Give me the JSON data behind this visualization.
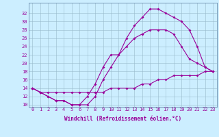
{
  "xlabel": "Windchill (Refroidissement éolien,°C)",
  "background_color": "#cceeff",
  "line_color": "#990099",
  "grid_color": "#99bbcc",
  "spine_color": "#6688aa",
  "marker": "D",
  "markersize": 2,
  "linewidth": 0.8,
  "series1": [
    [
      0,
      14
    ],
    [
      1,
      13
    ],
    [
      2,
      12
    ],
    [
      3,
      11
    ],
    [
      4,
      11
    ],
    [
      5,
      10
    ],
    [
      6,
      10
    ],
    [
      7,
      10
    ],
    [
      8,
      12
    ],
    [
      9,
      16
    ],
    [
      10,
      19
    ],
    [
      11,
      22
    ],
    [
      12,
      26
    ],
    [
      13,
      29
    ],
    [
      14,
      31
    ],
    [
      15,
      33
    ],
    [
      16,
      33
    ],
    [
      17,
      32
    ],
    [
      18,
      31
    ],
    [
      19,
      30
    ],
    [
      20,
      28
    ],
    [
      21,
      24
    ],
    [
      22,
      19
    ],
    [
      23,
      18
    ]
  ],
  "series2": [
    [
      0,
      14
    ],
    [
      1,
      13
    ],
    [
      2,
      12
    ],
    [
      3,
      11
    ],
    [
      4,
      11
    ],
    [
      5,
      10
    ],
    [
      6,
      10
    ],
    [
      7,
      12
    ],
    [
      8,
      15
    ],
    [
      9,
      19
    ],
    [
      10,
      22
    ],
    [
      11,
      22
    ],
    [
      12,
      24
    ],
    [
      13,
      26
    ],
    [
      14,
      27
    ],
    [
      15,
      28
    ],
    [
      16,
      28
    ],
    [
      17,
      28
    ],
    [
      18,
      27
    ],
    [
      19,
      24
    ],
    [
      20,
      21
    ],
    [
      21,
      20
    ],
    [
      22,
      19
    ],
    [
      23,
      18
    ]
  ],
  "series3": [
    [
      0,
      14
    ],
    [
      1,
      13
    ],
    [
      2,
      13
    ],
    [
      3,
      13
    ],
    [
      4,
      13
    ],
    [
      5,
      13
    ],
    [
      6,
      13
    ],
    [
      7,
      13
    ],
    [
      8,
      13
    ],
    [
      9,
      13
    ],
    [
      10,
      14
    ],
    [
      11,
      14
    ],
    [
      12,
      14
    ],
    [
      13,
      14
    ],
    [
      14,
      15
    ],
    [
      15,
      15
    ],
    [
      16,
      16
    ],
    [
      17,
      16
    ],
    [
      18,
      17
    ],
    [
      19,
      17
    ],
    [
      20,
      17
    ],
    [
      21,
      17
    ],
    [
      22,
      18
    ],
    [
      23,
      18
    ]
  ],
  "yticks": [
    10,
    12,
    14,
    16,
    18,
    20,
    22,
    24,
    26,
    28,
    30,
    32
  ],
  "xticks": [
    0,
    1,
    2,
    3,
    4,
    5,
    6,
    7,
    8,
    9,
    10,
    11,
    12,
    13,
    14,
    15,
    16,
    17,
    18,
    19,
    20,
    21,
    22,
    23
  ],
  "ylim": [
    9.5,
    34.5
  ],
  "xlim": [
    -0.5,
    23.5
  ],
  "tick_fontsize": 5,
  "xlabel_fontsize": 5.5
}
